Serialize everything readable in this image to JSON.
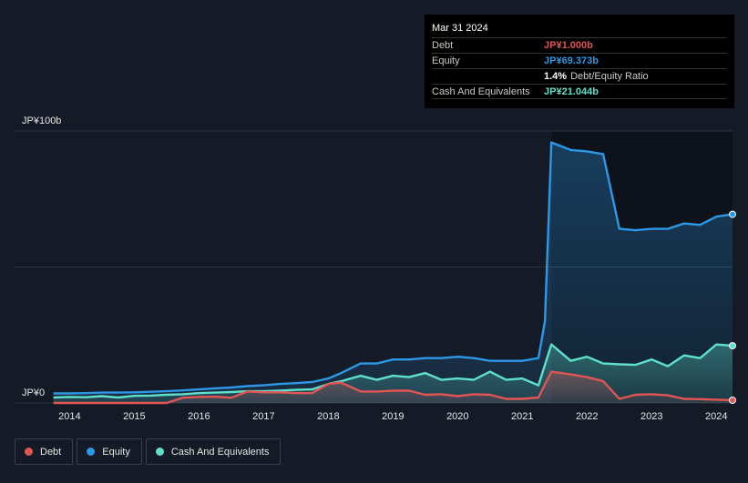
{
  "tooltip": {
    "date": "Mar 31 2024",
    "rows": [
      {
        "label": "Debt",
        "value": "JP¥1.000b",
        "color": "#e25555"
      },
      {
        "label": "Equity",
        "value": "JP¥69.373b",
        "color": "#2d97e8"
      },
      {
        "ratio_pct": "1.4%",
        "ratio_label": "Debt/Equity Ratio"
      },
      {
        "label": "Cash And Equivalents",
        "value": "JP¥21.044b",
        "color": "#5fe0cb"
      }
    ]
  },
  "legend": [
    {
      "label": "Debt",
      "color": "#e25555"
    },
    {
      "label": "Equity",
      "color": "#2d97e8"
    },
    {
      "label": "Cash And Equivalents",
      "color": "#5fe0cb"
    }
  ],
  "chart_data": {
    "type": "area",
    "xlim": [
      2013.6,
      2024.25
    ],
    "ylim": [
      0,
      100
    ],
    "y_tick_labels": [
      {
        "value": 100,
        "label": "JP¥100b"
      },
      {
        "value": 0,
        "label": "JP¥0"
      }
    ],
    "gridlines": [
      100,
      50,
      0
    ],
    "x_ticks": [
      2014,
      2015,
      2016,
      2017,
      2018,
      2019,
      2020,
      2021,
      2022,
      2023,
      2024
    ],
    "legend_position": "bottom-left",
    "series": [
      {
        "name": "Debt",
        "color": "#e25555",
        "points": [
          [
            2013.75,
            0
          ],
          [
            2015.5,
            0
          ],
          [
            2015.75,
            1.9
          ],
          [
            2016.0,
            2.2
          ],
          [
            2016.25,
            2.3
          ],
          [
            2016.5,
            1.9
          ],
          [
            2016.75,
            4.2
          ],
          [
            2017.0,
            3.9
          ],
          [
            2017.25,
            3.9
          ],
          [
            2017.5,
            3.6
          ],
          [
            2017.75,
            3.6
          ],
          [
            2018.0,
            7.0
          ],
          [
            2018.2,
            7.5
          ],
          [
            2018.5,
            4.2
          ],
          [
            2018.75,
            4.2
          ],
          [
            2019.0,
            4.5
          ],
          [
            2019.25,
            4.5
          ],
          [
            2019.5,
            3.0
          ],
          [
            2019.75,
            3.2
          ],
          [
            2020.0,
            2.5
          ],
          [
            2020.25,
            3.2
          ],
          [
            2020.5,
            3.0
          ],
          [
            2020.75,
            1.5
          ],
          [
            2021.0,
            1.5
          ],
          [
            2021.25,
            2.0
          ],
          [
            2021.45,
            11.5
          ],
          [
            2021.75,
            10.5
          ],
          [
            2022.0,
            9.5
          ],
          [
            2022.25,
            8.0
          ],
          [
            2022.5,
            1.5
          ],
          [
            2022.75,
            3.0
          ],
          [
            2023.0,
            3.2
          ],
          [
            2023.25,
            2.8
          ],
          [
            2023.5,
            1.5
          ],
          [
            2023.75,
            1.4
          ],
          [
            2024.0,
            1.2
          ],
          [
            2024.25,
            1.0
          ]
        ]
      },
      {
        "name": "Equity",
        "color": "#2d97e8",
        "points": [
          [
            2013.75,
            3.5
          ],
          [
            2014.0,
            3.5
          ],
          [
            2014.25,
            3.6
          ],
          [
            2014.5,
            3.8
          ],
          [
            2014.75,
            3.8
          ],
          [
            2015.0,
            3.9
          ],
          [
            2015.25,
            4.1
          ],
          [
            2015.5,
            4.3
          ],
          [
            2015.75,
            4.6
          ],
          [
            2016.0,
            5.0
          ],
          [
            2016.25,
            5.4
          ],
          [
            2016.5,
            5.7
          ],
          [
            2016.75,
            6.2
          ],
          [
            2017.0,
            6.5
          ],
          [
            2017.25,
            7.0
          ],
          [
            2017.5,
            7.3
          ],
          [
            2017.75,
            7.7
          ],
          [
            2018.0,
            9.0
          ],
          [
            2018.2,
            11.0
          ],
          [
            2018.5,
            14.5
          ],
          [
            2018.75,
            14.5
          ],
          [
            2019.0,
            16.0
          ],
          [
            2019.25,
            16.0
          ],
          [
            2019.5,
            16.5
          ],
          [
            2019.75,
            16.5
          ],
          [
            2020.0,
            17.0
          ],
          [
            2020.25,
            16.5
          ],
          [
            2020.5,
            15.5
          ],
          [
            2020.75,
            15.5
          ],
          [
            2021.0,
            15.5
          ],
          [
            2021.25,
            16.5
          ],
          [
            2021.35,
            30.0
          ],
          [
            2021.45,
            95.8
          ],
          [
            2021.75,
            93.0
          ],
          [
            2022.0,
            92.5
          ],
          [
            2022.25,
            91.5
          ],
          [
            2022.5,
            64.0
          ],
          [
            2022.75,
            63.5
          ],
          [
            2023.0,
            64.0
          ],
          [
            2023.25,
            64.0
          ],
          [
            2023.5,
            66.0
          ],
          [
            2023.75,
            65.5
          ],
          [
            2024.0,
            68.5
          ],
          [
            2024.25,
            69.373
          ]
        ]
      },
      {
        "name": "Cash And Equivalents",
        "color": "#5fe0cb",
        "points": [
          [
            2013.75,
            2.0
          ],
          [
            2014.0,
            2.2
          ],
          [
            2014.25,
            2.1
          ],
          [
            2014.5,
            2.5
          ],
          [
            2014.75,
            2.0
          ],
          [
            2015.0,
            2.6
          ],
          [
            2015.25,
            2.7
          ],
          [
            2015.5,
            3.0
          ],
          [
            2015.75,
            3.2
          ],
          [
            2016.0,
            3.6
          ],
          [
            2016.25,
            3.8
          ],
          [
            2016.5,
            4.0
          ],
          [
            2016.75,
            4.3
          ],
          [
            2017.0,
            4.3
          ],
          [
            2017.25,
            4.5
          ],
          [
            2017.5,
            4.8
          ],
          [
            2017.75,
            5.0
          ],
          [
            2018.0,
            7.0
          ],
          [
            2018.2,
            8.0
          ],
          [
            2018.5,
            10.0
          ],
          [
            2018.75,
            8.5
          ],
          [
            2019.0,
            10.0
          ],
          [
            2019.25,
            9.5
          ],
          [
            2019.5,
            11.0
          ],
          [
            2019.75,
            8.5
          ],
          [
            2020.0,
            9.0
          ],
          [
            2020.25,
            8.5
          ],
          [
            2020.5,
            11.5
          ],
          [
            2020.75,
            8.5
          ],
          [
            2021.0,
            9.0
          ],
          [
            2021.25,
            6.5
          ],
          [
            2021.45,
            21.5
          ],
          [
            2021.75,
            15.5
          ],
          [
            2022.0,
            17.0
          ],
          [
            2022.25,
            14.5
          ],
          [
            2022.5,
            14.2
          ],
          [
            2022.75,
            14.0
          ],
          [
            2023.0,
            16.0
          ],
          [
            2023.25,
            13.5
          ],
          [
            2023.5,
            17.5
          ],
          [
            2023.75,
            16.5
          ],
          [
            2024.0,
            21.5
          ],
          [
            2024.25,
            21.044
          ]
        ]
      }
    ]
  }
}
